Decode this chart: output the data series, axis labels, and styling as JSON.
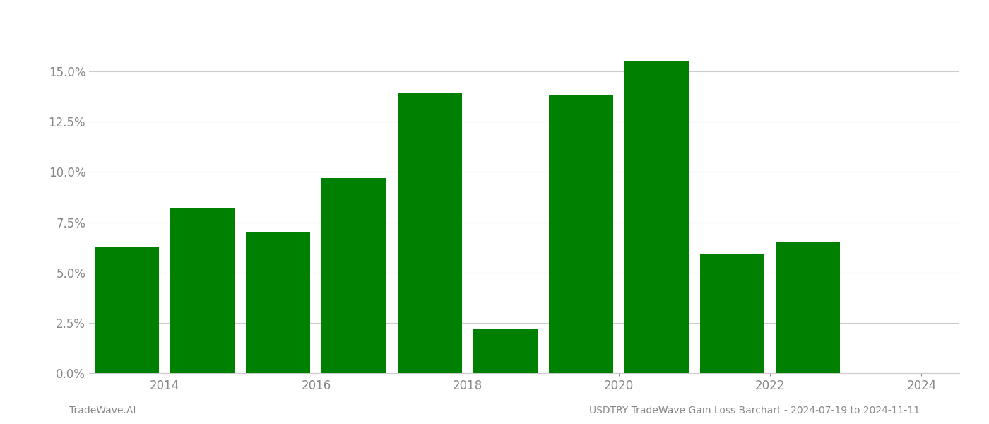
{
  "years": [
    2013.5,
    2014.5,
    2015.5,
    2016.5,
    2017.5,
    2018.5,
    2019.5,
    2020.5,
    2021.5,
    2022.5
  ],
  "values": [
    0.063,
    0.082,
    0.07,
    0.097,
    0.139,
    0.022,
    0.138,
    0.155,
    0.059,
    0.065
  ],
  "bar_color": "#008000",
  "background_color": "#ffffff",
  "grid_color": "#cccccc",
  "xlabel_color": "#888888",
  "ylabel_color": "#888888",
  "footer_left": "TradeWave.AI",
  "footer_right": "USDTRY TradeWave Gain Loss Barchart - 2024-07-19 to 2024-11-11",
  "footer_color": "#888888",
  "ylim_min": 0.0,
  "ylim_max": 0.175,
  "yticks": [
    0.0,
    0.025,
    0.05,
    0.075,
    0.1,
    0.125,
    0.15
  ],
  "xticks": [
    2014,
    2016,
    2018,
    2020,
    2022,
    2024
  ],
  "xlim_min": 2013.0,
  "xlim_max": 2024.5,
  "bar_width": 0.85
}
